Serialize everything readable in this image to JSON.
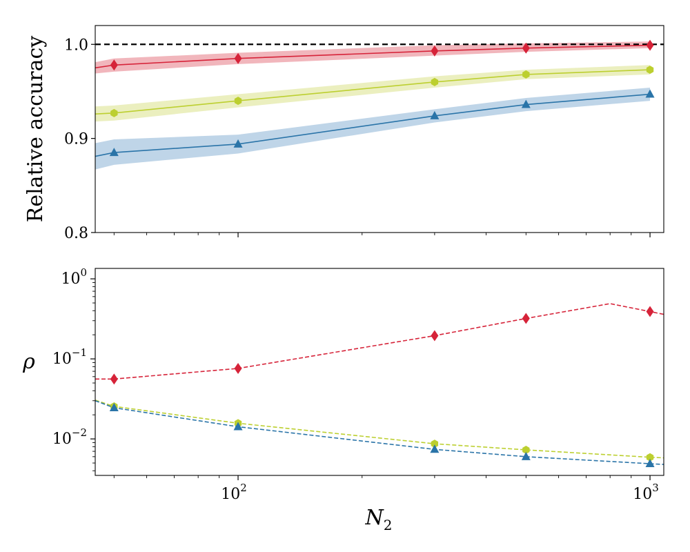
{
  "chart_data": [
    {
      "panel": "top",
      "type": "line",
      "xscale": "log",
      "xlim": [
        45,
        1080
      ],
      "ylim": [
        0.8,
        1.02
      ],
      "ylabel": "Relative accuracy",
      "yticks": [
        0.8,
        0.9,
        1.0
      ],
      "ytick_labels": [
        "0.8",
        "0.9",
        "1.0"
      ],
      "reference_line": {
        "y": 1.0,
        "style": "dashed",
        "color": "#000000"
      },
      "series": [
        {
          "name": "red",
          "color": "#d62339",
          "band_color": "#e8868f",
          "marker": "diamond",
          "x": [
            45,
            50,
            100,
            300,
            500,
            1000
          ],
          "y": [
            0.975,
            0.978,
            0.985,
            0.993,
            0.996,
            0.999
          ],
          "lower": [
            0.969,
            0.971,
            0.979,
            0.988,
            0.992,
            0.996
          ],
          "upper": [
            0.981,
            0.985,
            0.991,
            0.999,
            1.001,
            1.003
          ],
          "marker_x": [
            50,
            100,
            300,
            500,
            1000
          ]
        },
        {
          "name": "yellow-green",
          "color": "#bccf2f",
          "band_color": "#dde494",
          "marker": "hexagon",
          "x": [
            45,
            50,
            100,
            300,
            500,
            1000
          ],
          "y": [
            0.926,
            0.927,
            0.94,
            0.96,
            0.968,
            0.973
          ],
          "lower": [
            0.918,
            0.919,
            0.933,
            0.954,
            0.963,
            0.968
          ],
          "upper": [
            0.934,
            0.935,
            0.947,
            0.966,
            0.973,
            0.978
          ],
          "marker_x": [
            50,
            100,
            300,
            500,
            1000
          ]
        },
        {
          "name": "blue",
          "color": "#2a74a8",
          "band_color": "#94b9d9",
          "marker": "triangle",
          "x": [
            45,
            50,
            100,
            300,
            500,
            1000
          ],
          "y": [
            0.881,
            0.885,
            0.894,
            0.924,
            0.936,
            0.947
          ],
          "lower": [
            0.867,
            0.872,
            0.884,
            0.917,
            0.929,
            0.94
          ],
          "upper": [
            0.895,
            0.899,
            0.904,
            0.931,
            0.943,
            0.954
          ],
          "marker_x": [
            50,
            100,
            300,
            500,
            1000
          ]
        }
      ]
    },
    {
      "panel": "bottom",
      "type": "line",
      "xscale": "log",
      "yscale": "log",
      "xlim": [
        45,
        1080
      ],
      "ylim": [
        0.0035,
        1.35
      ],
      "xlabel_base": "N",
      "xlabel_sub": "2",
      "ylabel": "ρ",
      "yticks": [
        0.01,
        0.1,
        1
      ],
      "ytick_bases": [
        "10",
        "10",
        "10"
      ],
      "ytick_exps": [
        "−2",
        "−1",
        "0"
      ],
      "xticks": [
        100,
        1000
      ],
      "xtick_bases": [
        "10",
        "10"
      ],
      "xtick_exps": [
        "2",
        "3"
      ],
      "series": [
        {
          "name": "red",
          "color": "#d62339",
          "marker": "diamond",
          "linestyle": "dashed",
          "x": [
            45,
            50,
            100,
            300,
            500,
            800,
            1000,
            1080
          ],
          "y": [
            0.056,
            0.056,
            0.076,
            0.195,
            0.32,
            0.49,
            0.39,
            0.36
          ],
          "marker_x": [
            50,
            100,
            300,
            500,
            1000
          ]
        },
        {
          "name": "yellow-green",
          "color": "#bccf2f",
          "marker": "hexagon",
          "linestyle": "dashed",
          "x": [
            45,
            50,
            100,
            300,
            500,
            1000,
            1080
          ],
          "y": [
            0.0305,
            0.0255,
            0.0157,
            0.0087,
            0.0073,
            0.0059,
            0.0058
          ],
          "marker_x": [
            50,
            100,
            300,
            500,
            1000
          ]
        },
        {
          "name": "blue",
          "color": "#2a74a8",
          "marker": "triangle",
          "linestyle": "dashed",
          "x": [
            45,
            50,
            100,
            300,
            500,
            1000,
            1080
          ],
          "y": [
            0.03,
            0.0245,
            0.0142,
            0.0074,
            0.006,
            0.0049,
            0.0048
          ],
          "marker_x": [
            50,
            100,
            300,
            500,
            1000
          ]
        }
      ]
    }
  ]
}
